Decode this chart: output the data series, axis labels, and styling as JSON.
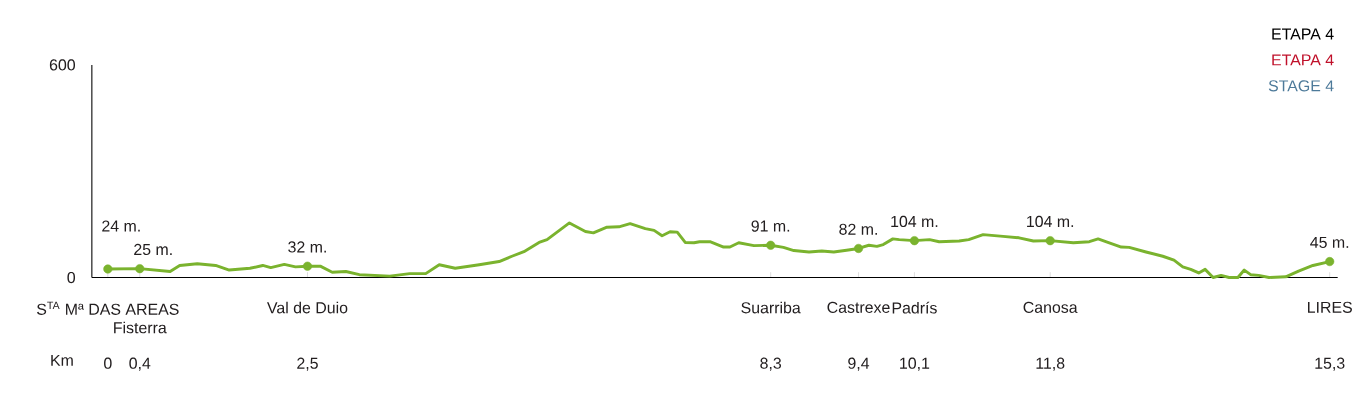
{
  "chart_data": {
    "type": "line",
    "title": "ETAPA 4",
    "subtitle": "ETAPA 4",
    "xlabel": "Km",
    "annotations": [
      "STAGE 4",
      "S$^{TA}$ Mª DAS AREAS",
      "Fisterra",
      "Val de Duio",
      "Suarriba",
      "Castrexe",
      "Padrís",
      "Canosa",
      "LIRES"
    ],
    "xlim": [
      -0.2,
      15.4
    ],
    "ylim": [
      0,
      600
    ],
    "yticks": [
      0,
      600
    ],
    "xticks": [
      0,
      {
        "value": 0.4,
        "label": "0,4"
      },
      {
        "value": 2.5,
        "label": "2,5"
      },
      {
        "value": 8.3,
        "label": "8,3"
      },
      {
        "value": 9.4,
        "label": "9,4"
      },
      {
        "value": 10.1,
        "label": "10,1"
      },
      {
        "value": 11.8,
        "label": "11,8"
      },
      {
        "value": 15.3,
        "label": "15,3"
      }
    ],
    "series": [
      {
        "color": "#7ab32e",
        "line_style": "solid",
        "x": [
          0,
          0.4,
          0.78,
          0.9,
          1.12,
          1.35,
          1.52,
          1.78,
          1.94,
          2.04,
          2.21,
          2.35,
          2.5,
          2.66,
          2.81,
          2.98,
          3.15,
          3.53,
          3.78,
          3.98,
          4.15,
          4.35,
          4.65,
          4.9,
          5.06,
          5.21,
          5.4,
          5.5,
          5.78,
          5.98,
          6.08,
          6.25,
          6.4,
          6.54,
          6.73,
          6.84,
          6.94,
          7.04,
          7.13,
          7.23,
          7.34,
          7.41,
          7.54,
          7.71,
          7.79,
          7.9,
          8.09,
          8.3,
          8.46,
          8.59,
          8.78,
          8.94,
          9.09,
          9.25,
          9.4,
          9.53,
          9.63,
          9.71,
          9.83,
          9.91,
          10.1,
          10.29,
          10.41,
          10.66,
          10.78,
          10.96,
          11.21,
          11.41,
          11.59,
          11.8,
          12.09,
          12.29,
          12.4,
          12.54,
          12.69,
          12.79,
          13.0,
          13.21,
          13.35,
          13.46,
          13.56,
          13.66,
          13.74,
          13.84,
          13.94,
          14.04,
          14.15,
          14.23,
          14.31,
          14.41,
          14.54,
          14.75,
          14.91,
          15.09,
          15.3
        ],
        "values": [
          24,
          25,
          17,
          34,
          39,
          34,
          21,
          26,
          34,
          28,
          37,
          30,
          32,
          32,
          15,
          17,
          8,
          4,
          11,
          11,
          36,
          26,
          36,
          45,
          60,
          73,
          99,
          107,
          154,
          130,
          126,
          142,
          143,
          152,
          138,
          133,
          118,
          129,
          128,
          99,
          98,
          101,
          101,
          86,
          86,
          98,
          90,
          91,
          85,
          76,
          72,
          75,
          72,
          77,
          82,
          91,
          88,
          93,
          109,
          107,
          104,
          107,
          101,
          103,
          107,
          121,
          116,
          112,
          103,
          104,
          98,
          101,
          109,
          98,
          86,
          85,
          72,
          60,
          49,
          30,
          23,
          13,
          23,
          0,
          6,
          0,
          0,
          21,
          8,
          6,
          0,
          2,
          18,
          34,
          45
        ]
      },
      {
        "type": "scatter",
        "color": "#7ab32e",
        "marker": "circle",
        "x": [
          0,
          0.4,
          2.5,
          8.3,
          9.4,
          10.1,
          11.8,
          15.3
        ],
        "values": [
          24,
          25,
          32,
          91,
          82,
          104,
          104,
          45
        ],
        "value_labels": [
          "24 m.",
          "25 m.",
          "32 m.",
          "91 m.",
          "82 m.",
          "104 m.",
          "104 m.",
          "45 m."
        ]
      }
    ]
  }
}
